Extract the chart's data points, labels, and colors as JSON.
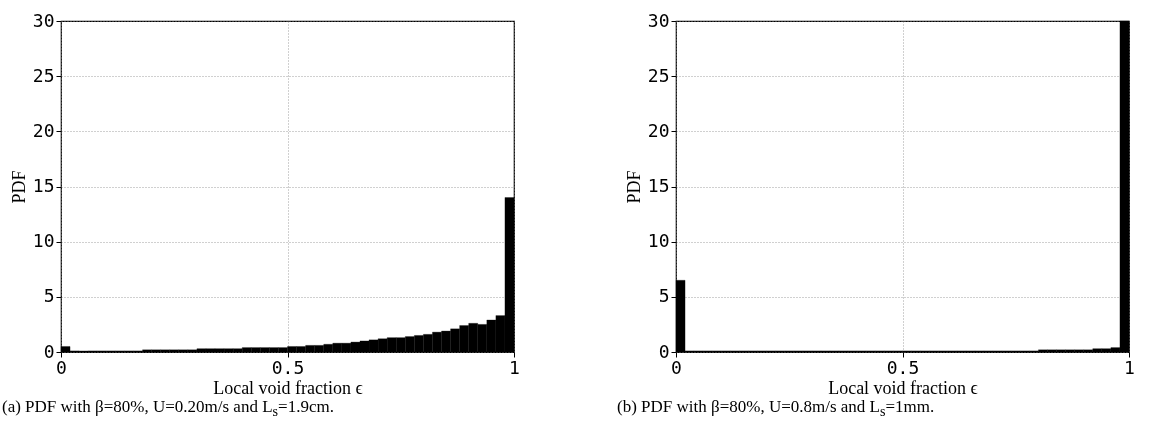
{
  "chart_data": [
    {
      "type": "histogram",
      "xlabel": "Local void fraction ϵ",
      "ylabel": "PDF",
      "color": "#000000",
      "grid": true,
      "xlim": [
        0,
        1
      ],
      "xticks": [
        0,
        0.5,
        1
      ],
      "ylim": [
        0,
        30
      ],
      "yticks": [
        0,
        5,
        10,
        15,
        20,
        25,
        30
      ],
      "bins": [
        0,
        0.02,
        0.04,
        0.06,
        0.08,
        0.1,
        0.12,
        0.14,
        0.16,
        0.18,
        0.2,
        0.22,
        0.24,
        0.26,
        0.28,
        0.3,
        0.32,
        0.34,
        0.36,
        0.38,
        0.4,
        0.42,
        0.44,
        0.46,
        0.48,
        0.5,
        0.52,
        0.54,
        0.56,
        0.58,
        0.6,
        0.62,
        0.64,
        0.66,
        0.68,
        0.7,
        0.72,
        0.74,
        0.76,
        0.78,
        0.8,
        0.82,
        0.84,
        0.86,
        0.88,
        0.9,
        0.92,
        0.94,
        0.96,
        0.98,
        1
      ],
      "values": [
        0.5,
        0.1,
        0.1,
        0.1,
        0.1,
        0.1,
        0.1,
        0.1,
        0.1,
        0.2,
        0.2,
        0.2,
        0.2,
        0.2,
        0.2,
        0.3,
        0.3,
        0.3,
        0.3,
        0.3,
        0.4,
        0.4,
        0.4,
        0.4,
        0.4,
        0.5,
        0.5,
        0.6,
        0.6,
        0.7,
        0.8,
        0.8,
        0.9,
        1.0,
        1.1,
        1.2,
        1.3,
        1.3,
        1.4,
        1.5,
        1.6,
        1.8,
        1.9,
        2.1,
        2.4,
        2.6,
        2.5,
        2.9,
        3.3,
        14
      ],
      "annotations": [
        "(a) PDF with β=80%, U=0.20m/s and L$_{s}$=1.9cm."
      ]
    },
    {
      "type": "histogram",
      "xlabel": "Local void fraction ϵ",
      "ylabel": "PDF",
      "color": "#000000",
      "grid": true,
      "xlim": [
        0,
        1
      ],
      "xticks": [
        0,
        0.5,
        1
      ],
      "ylim": [
        0,
        30
      ],
      "yticks": [
        0,
        5,
        10,
        15,
        20,
        25,
        30
      ],
      "bins": [
        0,
        0.02,
        0.04,
        0.06,
        0.08,
        0.1,
        0.12,
        0.14,
        0.16,
        0.18,
        0.2,
        0.22,
        0.24,
        0.26,
        0.28,
        0.3,
        0.32,
        0.34,
        0.36,
        0.38,
        0.4,
        0.42,
        0.44,
        0.46,
        0.48,
        0.5,
        0.52,
        0.54,
        0.56,
        0.58,
        0.6,
        0.62,
        0.64,
        0.66,
        0.68,
        0.7,
        0.72,
        0.74,
        0.76,
        0.78,
        0.8,
        0.82,
        0.84,
        0.86,
        0.88,
        0.9,
        0.92,
        0.94,
        0.96,
        0.98,
        1
      ],
      "values": [
        6.5,
        0.1,
        0.1,
        0.1,
        0.1,
        0.1,
        0.1,
        0.1,
        0.1,
        0.1,
        0.1,
        0.1,
        0.1,
        0.1,
        0.1,
        0.1,
        0.1,
        0.1,
        0.1,
        0.1,
        0.1,
        0.1,
        0.1,
        0.1,
        0.1,
        0.1,
        0.1,
        0.1,
        0.1,
        0.1,
        0.1,
        0.1,
        0.1,
        0.1,
        0.1,
        0.1,
        0.1,
        0.1,
        0.1,
        0.1,
        0.2,
        0.2,
        0.2,
        0.2,
        0.2,
        0.2,
        0.3,
        0.3,
        0.4,
        30
      ],
      "annotations": [
        "(b) PDF with β=80%, U=0.8m/s and L$_{s}$=1mm."
      ]
    }
  ]
}
